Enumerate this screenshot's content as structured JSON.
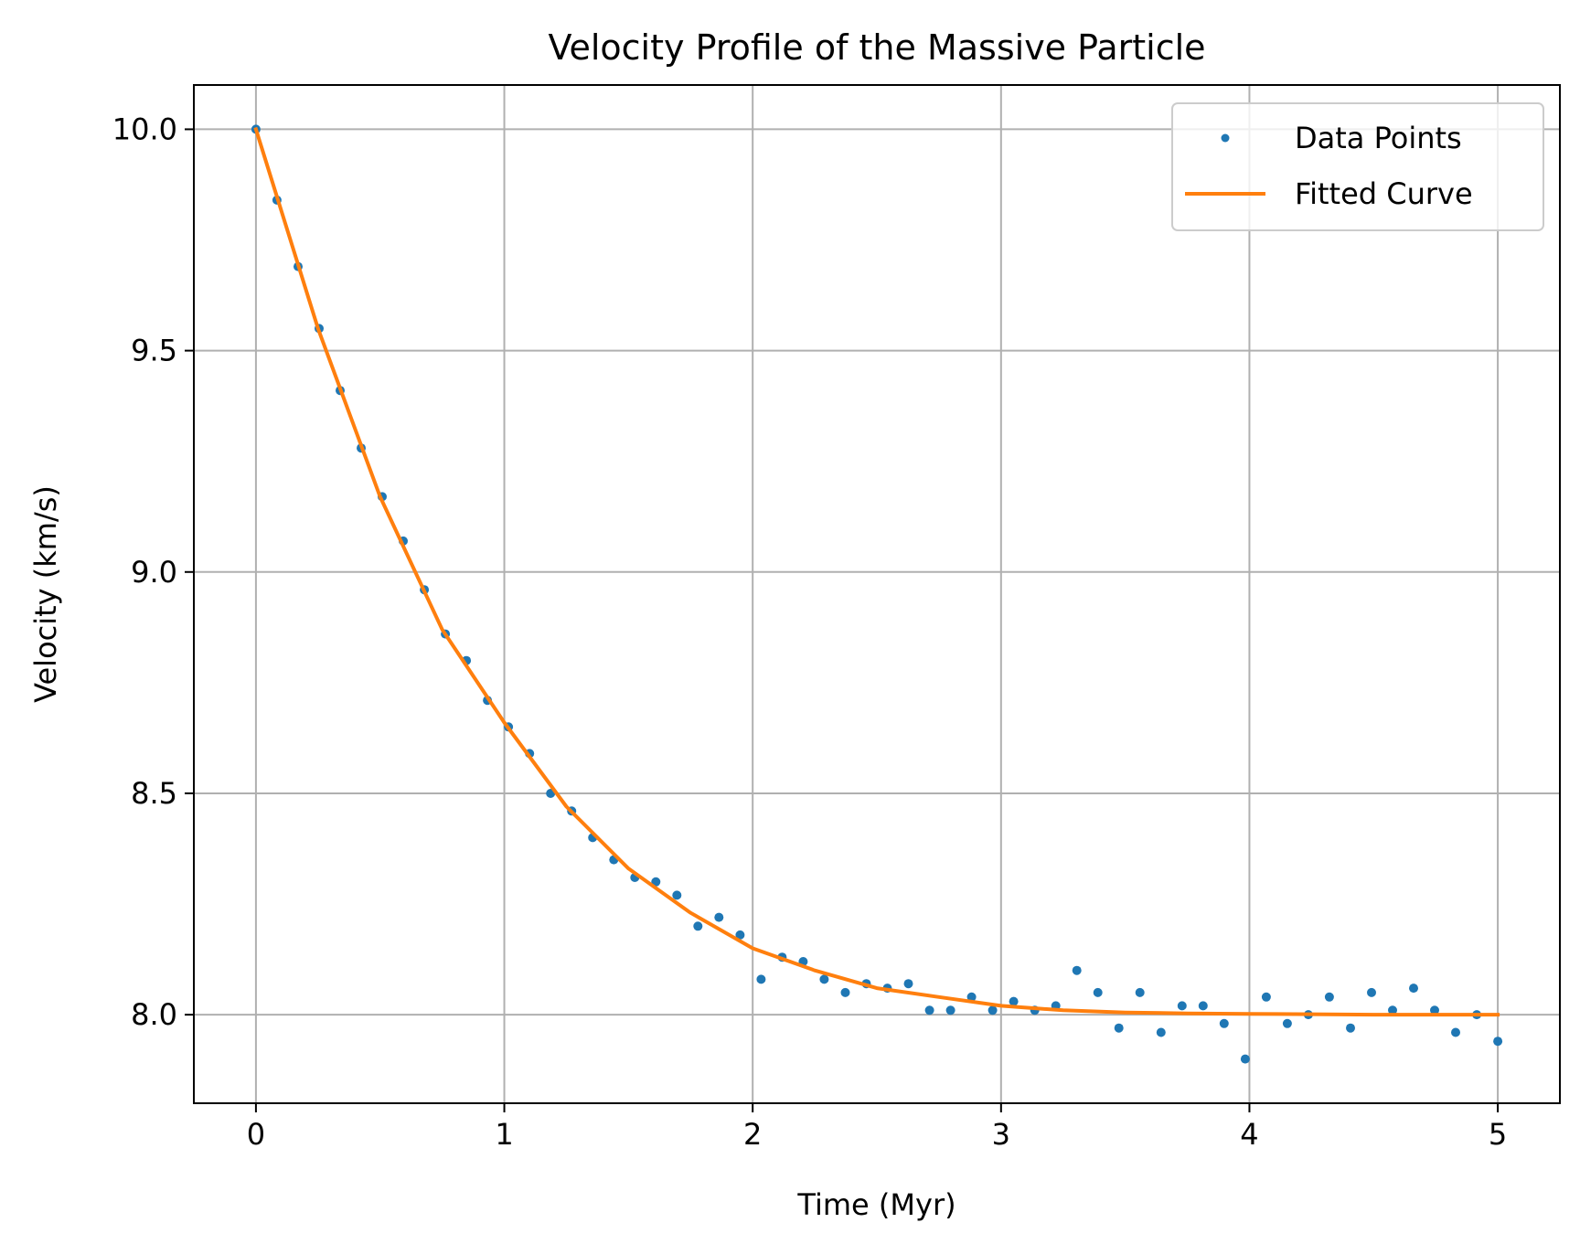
{
  "chart_data": {
    "type": "line",
    "title": "Velocity Profile of the Massive Particle",
    "xlabel": "Time (Myr)",
    "ylabel": "Velocity (km/s)",
    "xlim": [
      -0.25,
      5.25
    ],
    "ylim": [
      7.8,
      10.1
    ],
    "xticks": [
      0,
      1,
      2,
      3,
      4,
      5
    ],
    "xtick_labels": [
      "0",
      "1",
      "2",
      "3",
      "4",
      "5"
    ],
    "yticks": [
      8.0,
      8.5,
      9.0,
      9.5,
      10.0
    ],
    "ytick_labels": [
      "8.0",
      "8.5",
      "9.0",
      "9.5",
      "10.0"
    ],
    "grid": true,
    "legend_position": "top-right",
    "series": [
      {
        "name": "Data Points",
        "kind": "scatter",
        "color": "#1f77b4",
        "x": [
          0.0,
          0.0847,
          0.1695,
          0.2542,
          0.339,
          0.4237,
          0.5085,
          0.5932,
          0.678,
          0.7627,
          0.8475,
          0.9322,
          1.0169,
          1.1017,
          1.1864,
          1.2712,
          1.3559,
          1.4407,
          1.5254,
          1.6102,
          1.6949,
          1.7797,
          1.8644,
          1.9492,
          2.0339,
          2.1186,
          2.2034,
          2.2881,
          2.3729,
          2.4576,
          2.5424,
          2.6271,
          2.7119,
          2.7966,
          2.8814,
          2.9661,
          3.0508,
          3.1356,
          3.2203,
          3.3051,
          3.3898,
          3.4746,
          3.5593,
          3.6441,
          3.7288,
          3.8136,
          3.8983,
          3.9831,
          4.0678,
          4.1525,
          4.2373,
          4.322,
          4.4068,
          4.4915,
          4.5763,
          4.661,
          4.7458,
          4.8305,
          4.9153,
          5.0
        ],
        "values": [
          10.0,
          9.84,
          9.69,
          9.55,
          9.41,
          9.28,
          9.17,
          9.07,
          8.96,
          8.86,
          8.8,
          8.71,
          8.65,
          8.59,
          8.5,
          8.46,
          8.4,
          8.35,
          8.31,
          8.3,
          8.27,
          8.2,
          8.22,
          8.18,
          8.08,
          8.13,
          8.12,
          8.08,
          8.05,
          8.07,
          8.06,
          8.07,
          8.01,
          8.01,
          8.04,
          8.01,
          8.03,
          8.01,
          8.02,
          8.1,
          8.05,
          7.97,
          8.05,
          7.96,
          8.02,
          8.02,
          7.98,
          7.9,
          8.04,
          7.98,
          8.0,
          8.04,
          7.97,
          8.05,
          8.01,
          8.06,
          8.01,
          7.96,
          8.0,
          7.94
        ]
      },
      {
        "name": "Fitted Curve",
        "kind": "line",
        "color": "#ff7f0e",
        "x": [
          0.0,
          0.25,
          0.5,
          0.75,
          1.0,
          1.25,
          1.5,
          1.75,
          2.0,
          2.25,
          2.5,
          2.75,
          3.0,
          3.25,
          3.5,
          3.75,
          4.0,
          4.25,
          4.5,
          4.75,
          5.0
        ],
        "values": [
          10.0,
          9.55,
          9.17,
          8.87,
          8.66,
          8.47,
          8.33,
          8.23,
          8.15,
          8.1,
          8.06,
          8.04,
          8.02,
          8.01,
          8.005,
          8.003,
          8.002,
          8.001,
          8.0,
          8.0,
          8.0
        ]
      }
    ]
  }
}
